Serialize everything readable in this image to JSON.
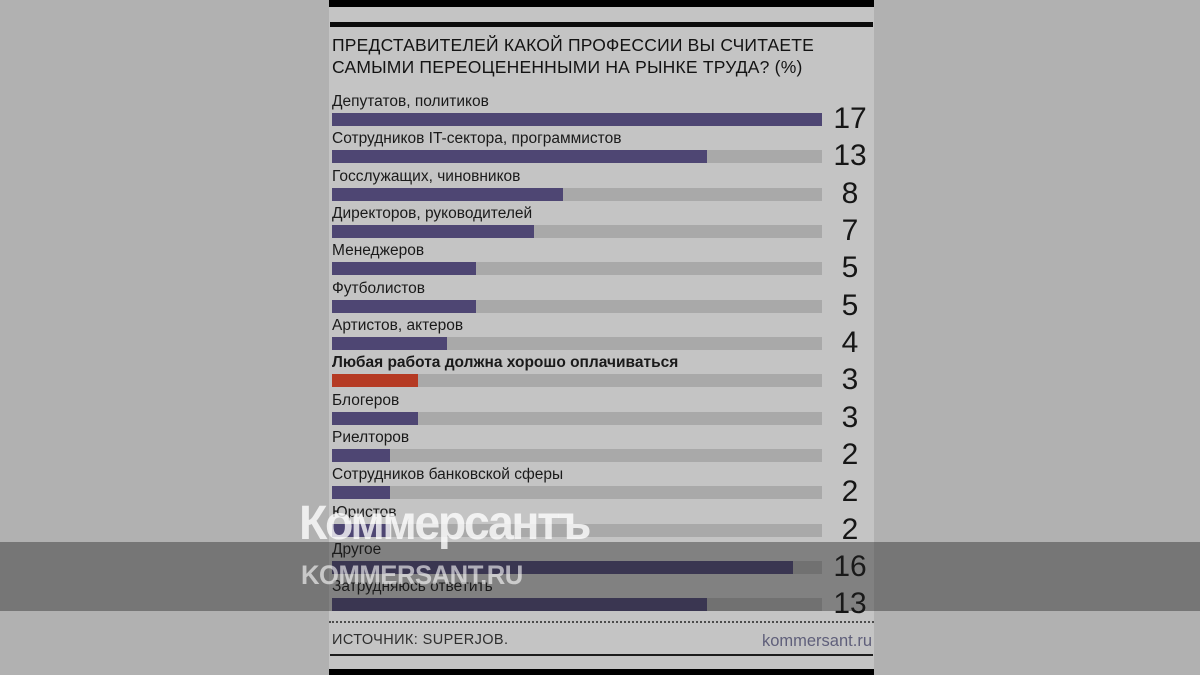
{
  "chart_data": {
    "type": "bar",
    "title": "ПРЕДСТАВИТЕЛЕЙ КАКОЙ ПРОФЕССИИ ВЫ СЧИТАЕТЕ САМЫМИ ПЕРЕОЦЕНЕННЫМИ НА РЫНКЕ ТРУДА? (%)",
    "title_lines": [
      "ПРЕДСТАВИТЕЛЕЙ КАКОЙ ПРОФЕССИИ ВЫ СЧИТАЕТЕ",
      "САМЫМИ ПЕРЕОЦЕНЕННЫМИ НА РЫНКЕ ТРУДА? (%)"
    ],
    "categories": [
      "Депутатов, политиков",
      "Сотрудников IT-сектора, программистов",
      "Госслужащих, чиновников",
      "Директоров, руководителей",
      "Менеджеров",
      "Футболистов",
      "Артистов, актеров",
      "Любая работа должна хорошо оплачиваться",
      "Блогеров",
      "Риелторов",
      "Сотрудников банковской сферы",
      "Юристов",
      "Другое",
      "Затрудняюсь ответить"
    ],
    "values": [
      17,
      13,
      8,
      7,
      5,
      5,
      4,
      3,
      3,
      2,
      2,
      2,
      16,
      13
    ],
    "scale_max": 17,
    "highlight_index": 7,
    "bar_color": "#4e4673",
    "highlight_color": "#b53a23",
    "track_color": "#a9a9a9",
    "legend_position": "none",
    "grid": false
  },
  "footer": {
    "source": "ИСТОЧНИК: SUPERJOB.",
    "site": "kommersant.ru"
  },
  "watermark": {
    "logo": "Коммерсантъ",
    "url": "KOMMERSANT.RU"
  }
}
